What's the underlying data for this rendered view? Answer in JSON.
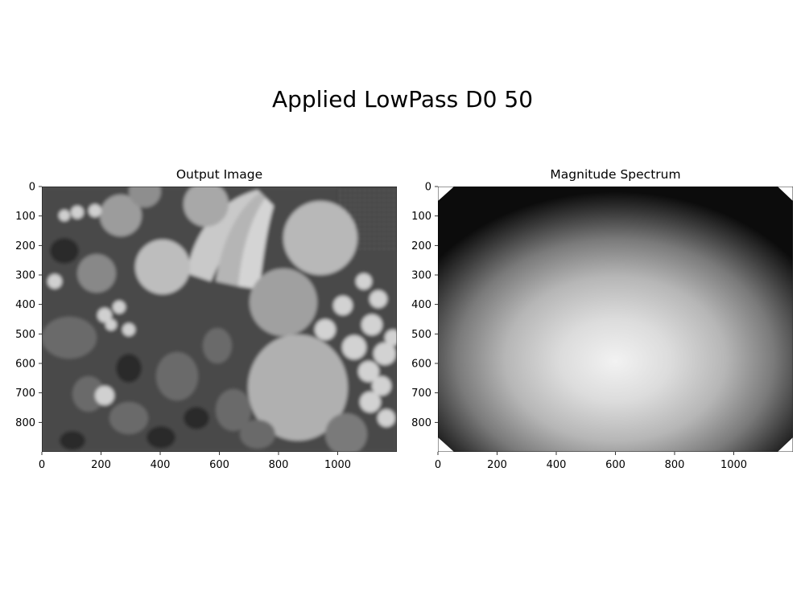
{
  "figure": {
    "title": "Applied LowPass D0 50"
  },
  "chart_data": [
    {
      "type": "image",
      "title": "Output Image",
      "colormap": "gray",
      "content": "low-pass filtered grayscale photo of assorted fruit",
      "xlim": [
        0,
        1200
      ],
      "ylim": [
        900,
        0
      ],
      "xticks": [
        0,
        200,
        400,
        600,
        800,
        1000
      ],
      "yticks": [
        0,
        100,
        200,
        300,
        400,
        500,
        600,
        700,
        800
      ],
      "xlabel": "",
      "ylabel": ""
    },
    {
      "type": "image",
      "title": "Magnitude Spectrum",
      "colormap": "gray",
      "content": "radial gradient bright at center fading to black at edges",
      "xlim": [
        0,
        1200
      ],
      "ylim": [
        900,
        0
      ],
      "xticks": [
        0,
        200,
        400,
        600,
        800,
        1000
      ],
      "yticks": [
        0,
        100,
        200,
        300,
        400,
        500,
        600,
        700,
        800
      ],
      "xlabel": "",
      "ylabel": ""
    }
  ]
}
